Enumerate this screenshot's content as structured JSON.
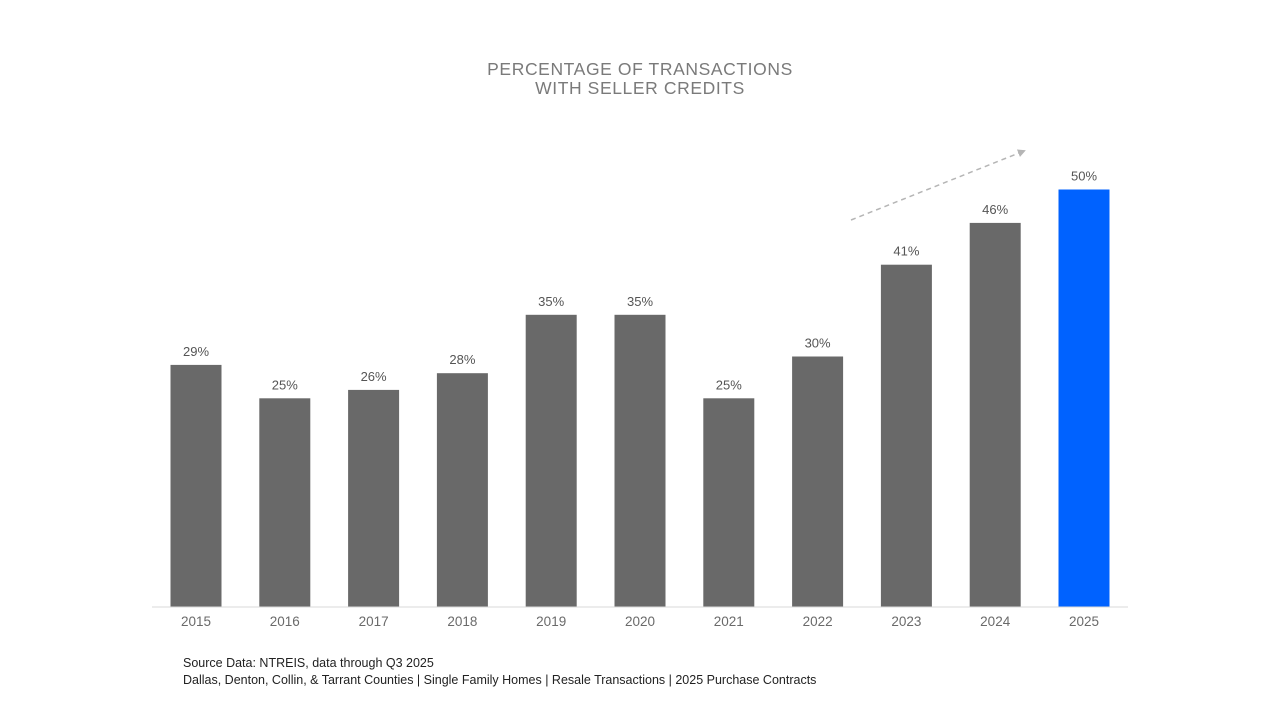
{
  "chart_data": {
    "type": "bar",
    "title_lines": [
      "PERCENTAGE OF TRANSACTIONS",
      "WITH SELLER CREDITS"
    ],
    "categories": [
      "2015",
      "2016",
      "2017",
      "2018",
      "2019",
      "2020",
      "2021",
      "2022",
      "2023",
      "2024",
      "2025"
    ],
    "values": [
      29,
      25,
      26,
      28,
      35,
      35,
      25,
      30,
      41,
      46,
      50
    ],
    "data_labels": [
      "29%",
      "25%",
      "26%",
      "28%",
      "35%",
      "35%",
      "25%",
      "30%",
      "41%",
      "46%",
      "50%"
    ],
    "ylim": [
      0,
      50
    ],
    "grid": false,
    "legend": "none",
    "bar_color": "#696969",
    "highlight_color": "#0062FF",
    "highlight_category": "2025",
    "annotation": "dashed upward trend arrow above 2023–2024 bars"
  },
  "footer": {
    "source_line": "Source Data:  NTREIS, data through Q3 2025",
    "detail_line": "Dallas, Denton, Collin, & Tarrant Counties | Single Family Homes | Resale Transactions | 2025 Purchase Contracts"
  }
}
